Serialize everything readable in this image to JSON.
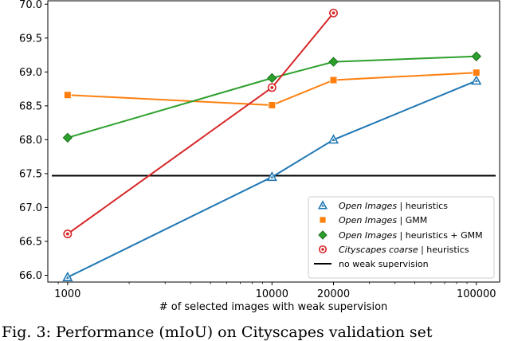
{
  "chart_data": {
    "type": "line",
    "xscale": "log",
    "xlabel": "# of selected images with weak supervision",
    "ylabel": "",
    "xlim": [
      800,
      130000
    ],
    "ylim": [
      65.9,
      70.05
    ],
    "x_ticks": [
      1000,
      10000,
      20000,
      100000
    ],
    "x_tick_labels": [
      "1000",
      "10000",
      "20000",
      "100000"
    ],
    "y_ticks": [
      66.0,
      66.5,
      67.0,
      67.5,
      68.0,
      68.5,
      69.0,
      69.5,
      70.0
    ],
    "y_tick_labels": [
      "66.0",
      "66.5",
      "67.0",
      "67.5",
      "68.0",
      "68.5",
      "69.0",
      "69.5",
      "70.0"
    ],
    "grid": false,
    "legend_position": "bottom-right",
    "series": [
      {
        "name_italic": "Open Images",
        "name_rest": " | heuristics",
        "color": "#1f77b4",
        "marker": "triangle",
        "x": [
          1000,
          10000,
          20000,
          100000
        ],
        "y": [
          65.97,
          67.45,
          68.0,
          68.87
        ]
      },
      {
        "name_italic": "Open Images",
        "name_rest": " | GMM",
        "color": "#ff7f0e",
        "marker": "square",
        "x": [
          1000,
          10000,
          20000,
          100000
        ],
        "y": [
          68.66,
          68.51,
          68.88,
          68.99
        ]
      },
      {
        "name_italic": "Open Images",
        "name_rest": " | heuristics + GMM",
        "color": "#2ca02c",
        "marker": "diamond",
        "x": [
          1000,
          10000,
          20000,
          100000
        ],
        "y": [
          68.03,
          68.91,
          69.15,
          69.23
        ]
      },
      {
        "name_italic": "Cityscapes coarse",
        "name_rest": " | heuristics",
        "color": "#d62728",
        "marker": "circle",
        "x": [
          1000,
          10000,
          20000
        ],
        "y": [
          66.61,
          68.77,
          69.87
        ]
      }
    ],
    "reference_line": {
      "name": "no weak supervision",
      "y": 67.47,
      "color": "#000000"
    }
  },
  "caption": "Fig. 3: Performance (mIoU) on Cityscapes validation set"
}
